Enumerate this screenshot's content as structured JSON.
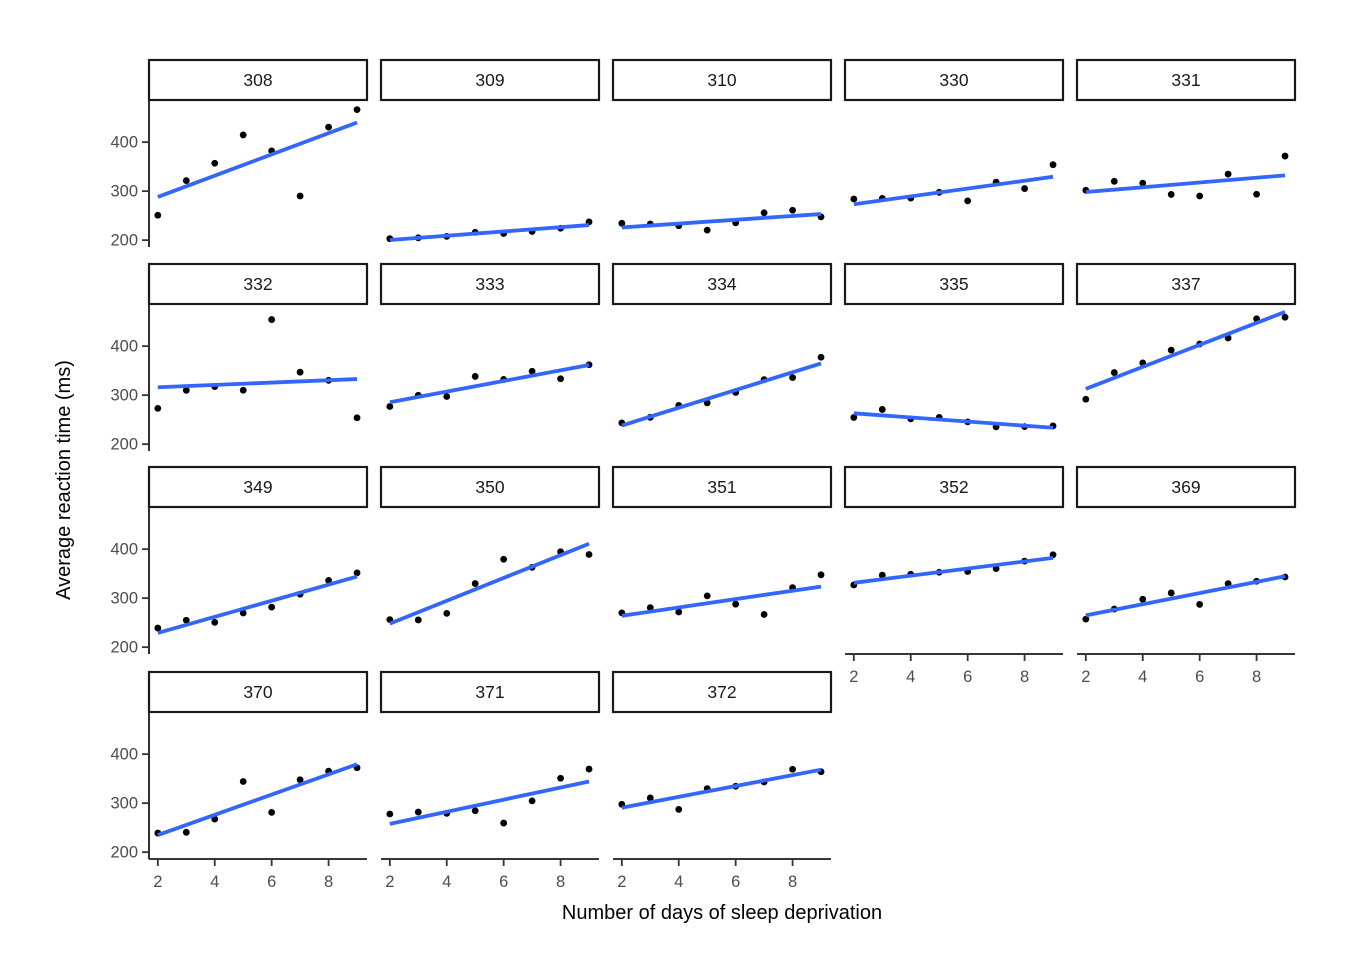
{
  "chart_data": {
    "type": "scatter",
    "title": "",
    "xlabel": "Number of days of sleep deprivation",
    "ylabel": "Average reaction time (ms)",
    "facet_variable": "Subject",
    "x": [
      2,
      3,
      4,
      5,
      6,
      7,
      8,
      9
    ],
    "x_ticks": [
      2,
      4,
      6,
      8
    ],
    "y_ticks": [
      200,
      300,
      400
    ],
    "xlim": [
      1.69,
      9.35
    ],
    "ylim": [
      186,
      486
    ],
    "grid": false,
    "legend": "none",
    "point_color": "#000000",
    "line_color": "#3366FF",
    "axis_color": "#1a1a1a",
    "tick_label_color": "#4d4d4d",
    "smooth": "linear-fit-per-facet",
    "ncol": 5,
    "facets": [
      {
        "label": "308",
        "values": [
          250.8,
          321.4,
          356.9,
          414.7,
          382.2,
          290.1,
          430.6,
          466.4
        ]
      },
      {
        "label": "309",
        "values": [
          203.0,
          204.7,
          207.7,
          216.0,
          213.6,
          217.7,
          224.3,
          237.3
        ]
      },
      {
        "label": "310",
        "values": [
          234.3,
          232.8,
          229.3,
          220.5,
          235.4,
          255.8,
          261.0,
          247.5
        ]
      },
      {
        "label": "330",
        "values": [
          283.9,
          285.1,
          285.8,
          297.6,
          280.2,
          318.3,
          305.3,
          354.0
        ]
      },
      {
        "label": "331",
        "values": [
          301.8,
          320.1,
          316.3,
          293.3,
          290.1,
          334.8,
          293.7,
          371.6
        ]
      },
      {
        "label": "332",
        "values": [
          273.0,
          309.8,
          317.5,
          310.0,
          454.2,
          346.8,
          330.3,
          253.9
        ]
      },
      {
        "label": "333",
        "values": [
          276.8,
          299.8,
          297.2,
          338.2,
          332.0,
          348.8,
          333.4,
          362.0
        ]
      },
      {
        "label": "334",
        "values": [
          243.4,
          254.7,
          279.0,
          284.2,
          305.5,
          331.5,
          335.7,
          377.3
        ]
      },
      {
        "label": "335",
        "values": [
          254.5,
          270.8,
          251.5,
          254.6,
          245.5,
          235.3,
          235.8,
          237.2
        ]
      },
      {
        "label": "337",
        "values": [
          291.6,
          346.1,
          365.7,
          391.8,
          404.3,
          416.7,
          455.9,
          458.9
        ]
      },
      {
        "label": "349",
        "values": [
          238.9,
          254.9,
          250.7,
          269.8,
          281.6,
          308.1,
          336.3,
          351.6
        ]
      },
      {
        "label": "350",
        "values": [
          256.2,
          255.5,
          268.9,
          329.7,
          379.4,
          362.9,
          394.5,
          389.1
        ]
      },
      {
        "label": "351",
        "values": [
          269.9,
          280.6,
          271.8,
          304.6,
          287.7,
          266.6,
          321.5,
          347.6
        ]
      },
      {
        "label": "352",
        "values": [
          326.9,
          346.9,
          348.7,
          352.8,
          354.4,
          360.4,
          375.6,
          388.5
        ]
      },
      {
        "label": "369",
        "values": [
          257.2,
          277.7,
          297.6,
          310.6,
          287.2,
          329.6,
          334.5,
          343.2
        ]
      },
      {
        "label": "370",
        "values": [
          238.9,
          240.5,
          267.5,
          344.2,
          281.1,
          347.6,
          365.2,
          372.2
        ]
      },
      {
        "label": "371",
        "values": [
          277.9,
          281.8,
          279.2,
          284.5,
          259.3,
          304.6,
          350.8,
          369.5
        ]
      },
      {
        "label": "372",
        "values": [
          297.6,
          310.6,
          287.2,
          329.6,
          334.5,
          343.2,
          369.1,
          364.1
        ]
      }
    ]
  }
}
